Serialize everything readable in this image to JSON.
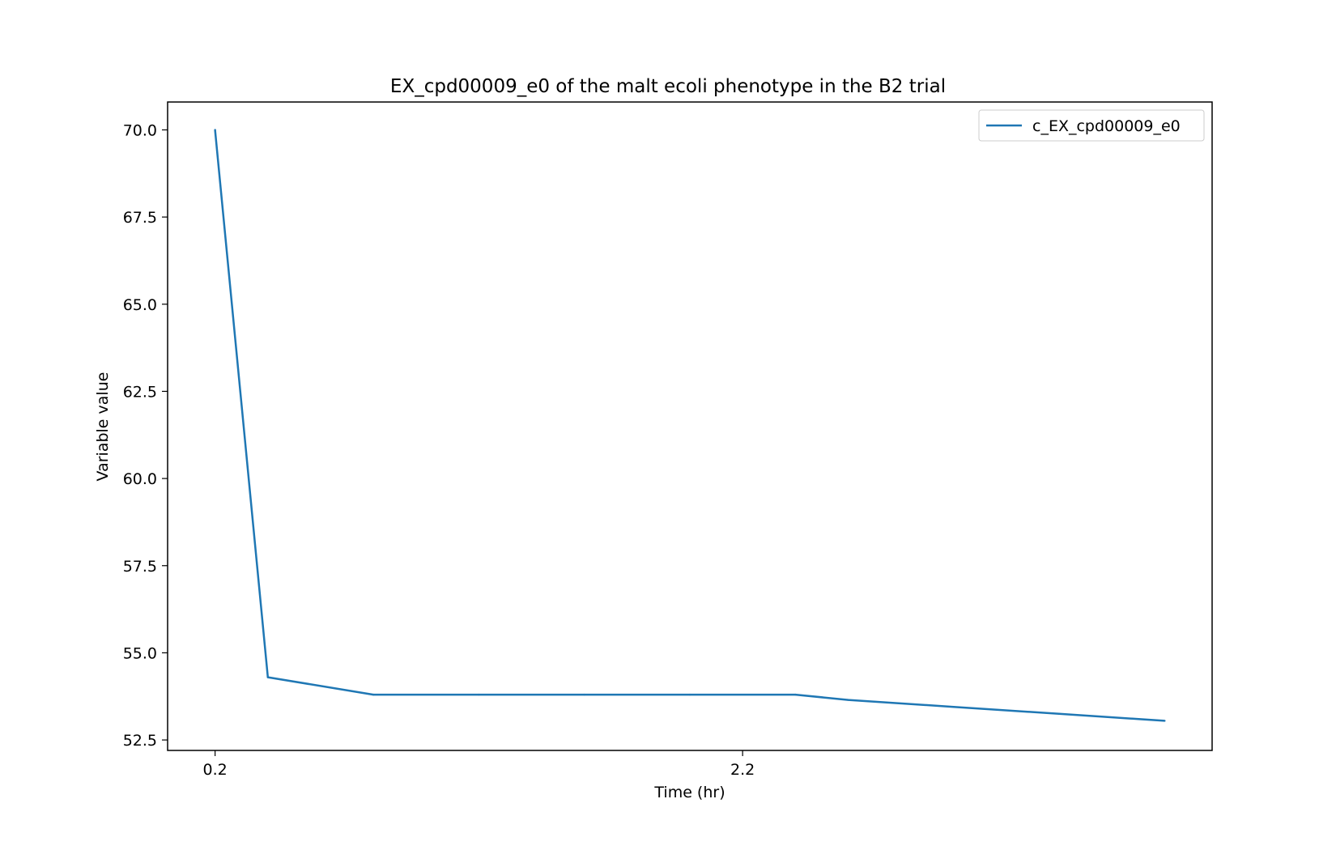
{
  "chart_data": {
    "type": "line",
    "title": "EX_cpd00009_e0 of the malt ecoli phenotype in the B2 trial",
    "xlabel": "Time (hr)",
    "ylabel": "Variable value",
    "xlim": [
      0.02,
      3.98
    ],
    "ylim": [
      52.2,
      70.8
    ],
    "x_ticks": [
      0.2,
      2.2
    ],
    "x_tick_labels": [
      "0.2",
      "2.2"
    ],
    "y_ticks": [
      52.5,
      55.0,
      57.5,
      60.0,
      62.5,
      65.0,
      67.5,
      70.0
    ],
    "y_tick_labels": [
      "52.5",
      "55.0",
      "57.5",
      "60.0",
      "62.5",
      "65.0",
      "67.5",
      "70.0"
    ],
    "grid": false,
    "legend_position": "top-right",
    "series": [
      {
        "name": "c_EX_cpd00009_e0",
        "color": "#1f77b4",
        "x": [
          0.2,
          0.4,
          0.8,
          1.2,
          1.6,
          2.0,
          2.4,
          2.6,
          3.0,
          3.4,
          3.8
        ],
        "y": [
          70.0,
          54.3,
          53.8,
          53.8,
          53.8,
          53.8,
          53.8,
          53.65,
          53.45,
          53.25,
          53.05
        ]
      }
    ]
  }
}
